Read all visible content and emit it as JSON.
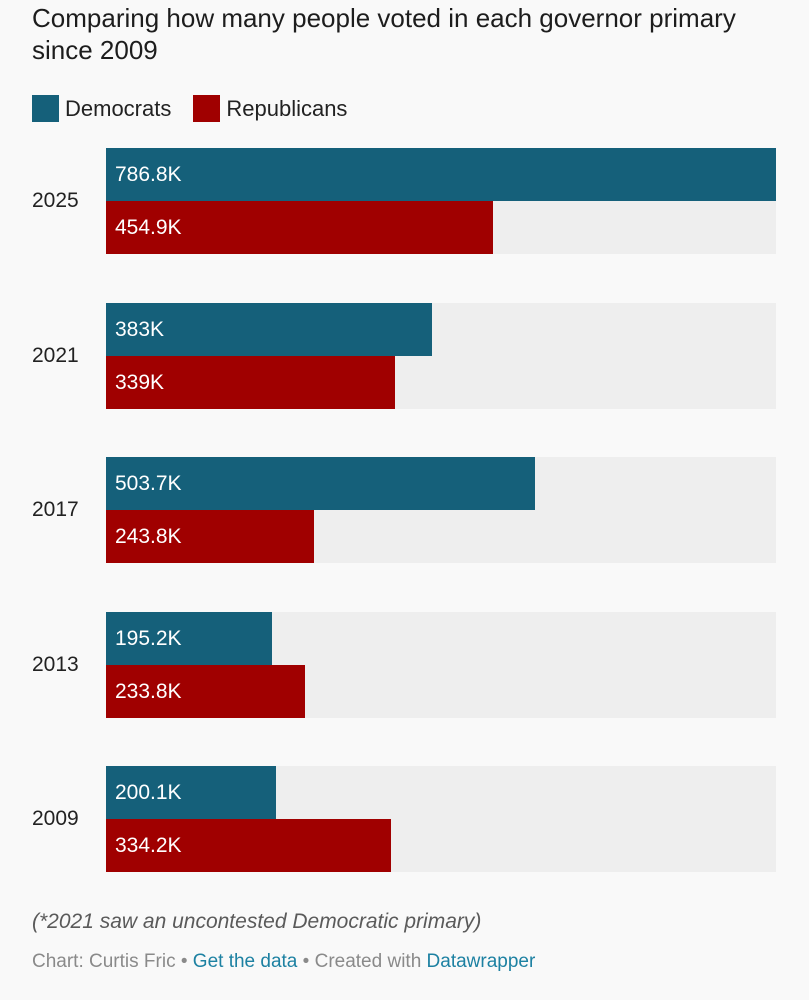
{
  "chart_data": {
    "type": "bar",
    "orientation": "horizontal",
    "title": "Comparing how many people voted in each governor primary since 2009",
    "categories": [
      "2025",
      "2021",
      "2017",
      "2013",
      "2009"
    ],
    "series": [
      {
        "name": "Democrats",
        "color": "#15607a",
        "values": [
          786.8,
          383,
          503.7,
          195.2,
          200.1
        ],
        "labels": [
          "786.8K",
          "383K",
          "503.7K",
          "195.2K",
          "200.1K"
        ]
      },
      {
        "name": "Republicans",
        "color": "#a00000",
        "values": [
          454.9,
          339,
          243.8,
          233.8,
          334.2
        ],
        "labels": [
          "454.9K",
          "339K",
          "243.8K",
          "233.8K",
          "334.2K"
        ]
      }
    ],
    "units": "thousands of votes",
    "xlim": [
      0,
      786.8
    ],
    "legend": "top-left",
    "note": "(*2021 saw an uncontested Democratic primary)"
  },
  "footer": {
    "prefix": "Chart: Curtis Fric",
    "separator": " • ",
    "get_data": "Get the data",
    "created_with": "Created with ",
    "tool": "Datawrapper"
  },
  "colors": {
    "track": "#eeeeee",
    "link": "#1d81a2"
  }
}
